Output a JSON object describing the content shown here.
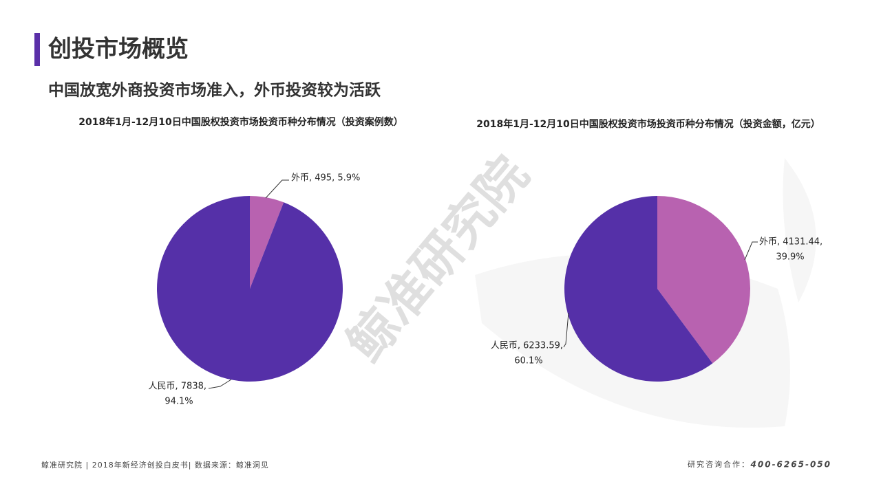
{
  "page": {
    "title": "创投市场概览",
    "subtitle": "中国放宽外商投资市场准入，外币投资较为活跃",
    "watermark": "鲸准研究院",
    "footer_left": "鲸准研究院 | 2018年新经济创投白皮书| 数据来源：鲸准洞见",
    "footer_contact": "研究咨询合作：",
    "footer_phone": "400-6265-050"
  },
  "chart_data": [
    {
      "type": "pie",
      "title": "2018年1月-12月10日中国股权投资市场投资币种分布情况（投资案例数）",
      "categories": [
        "外币",
        "人民币"
      ],
      "values": [
        495,
        7838
      ],
      "value_labels": [
        [
          "外币, 495, 5.9%"
        ],
        [
          "人民币, 7838,",
          "94.1%"
        ]
      ],
      "colors": [
        "#b862b0",
        "#5530a8"
      ]
    },
    {
      "type": "pie",
      "title": "2018年1月-12月10日中国股权投资市场投资币种分布情况（投资金额，亿元）",
      "categories": [
        "外币",
        "人民币"
      ],
      "values": [
        4131.44,
        6233.59
      ],
      "value_labels": [
        [
          "外币, 4131.44,",
          "39.9%"
        ],
        [
          "人民币, 6233.59,",
          "60.1%"
        ]
      ],
      "colors": [
        "#b862b0",
        "#5530a8"
      ]
    }
  ]
}
